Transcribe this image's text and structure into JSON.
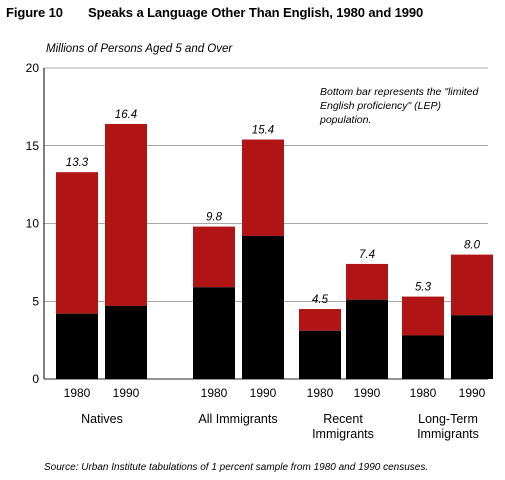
{
  "figure": {
    "number": "Figure 10",
    "title": "Speaks a Language Other Than English, 1980 and 1990",
    "units_label": "Millions of  Persons Aged 5 and Over",
    "note": "Bottom  bar represents the \"limited English proficiency\" (LEP) population.",
    "source": "Source: Urban Institute tabulations of 1 percent sample from 1980 and 1990 censuses."
  },
  "colors": {
    "lep": "#000000",
    "non_lep": "#b01414",
    "axis": "#000000"
  },
  "chart_data": {
    "type": "bar",
    "stacked": true,
    "ylim": [
      0,
      20
    ],
    "yticks": [
      0,
      5,
      10,
      15,
      20
    ],
    "grid": false,
    "groups": [
      {
        "label": [
          "Natives"
        ],
        "bars": [
          {
            "year": "1980",
            "total": 13.3,
            "lep": 4.2,
            "total_label": "13.3"
          },
          {
            "year": "1990",
            "total": 16.4,
            "lep": 4.7,
            "total_label": "16.4"
          }
        ]
      },
      {
        "label": [
          "All Immigrants"
        ],
        "bars": [
          {
            "year": "1980",
            "total": 9.8,
            "lep": 5.9,
            "total_label": "9.8"
          },
          {
            "year": "1990",
            "total": 15.4,
            "lep": 9.2,
            "total_label": "15.4"
          }
        ]
      },
      {
        "label": [
          "Recent",
          "Immigrants"
        ],
        "bars": [
          {
            "year": "1980",
            "total": 4.5,
            "lep": 3.1,
            "total_label": "4.5"
          },
          {
            "year": "1990",
            "total": 7.4,
            "lep": 5.1,
            "total_label": "7.4"
          }
        ]
      },
      {
        "label": [
          "Long-Term",
          "Immigrants"
        ],
        "bars": [
          {
            "year": "1980",
            "total": 5.3,
            "lep": 2.8,
            "total_label": "5.3"
          },
          {
            "year": "1990",
            "total": 8.0,
            "lep": 4.1,
            "total_label": "8.0"
          }
        ]
      }
    ]
  }
}
